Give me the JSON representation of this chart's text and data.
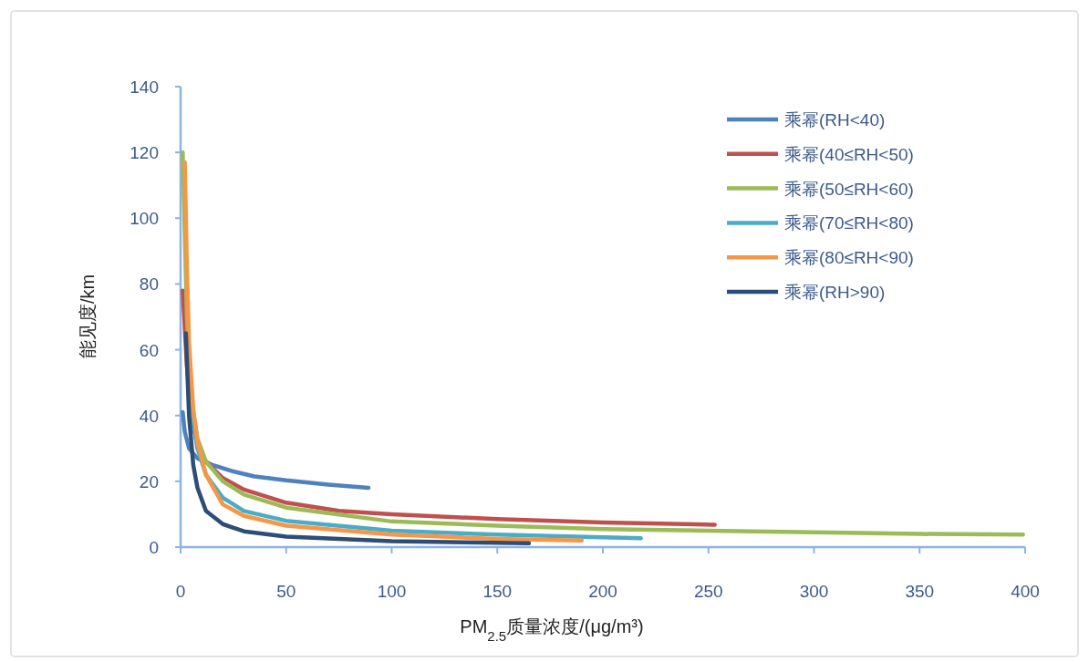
{
  "chart_data": {
    "type": "line",
    "xlabel": "PM$_{2.5}$质量浓度/(μg/m³)",
    "ylabel": "能见度/km",
    "xlim": [
      0,
      400
    ],
    "xticks": [
      0,
      50,
      100,
      150,
      200,
      250,
      300,
      350,
      400
    ],
    "ylim": [
      0,
      140
    ],
    "yticks": [
      0,
      20,
      40,
      60,
      80,
      100,
      120,
      140
    ],
    "grid": false,
    "legend": "top right",
    "marker": "none",
    "line_style": "solid",
    "series": [
      {
        "name": "乘幂(RH<40)",
        "color": "#4f81bd",
        "x": [
          1,
          2,
          4,
          8,
          15,
          25,
          35,
          50,
          70,
          89
        ],
        "values": [
          41,
          35,
          30,
          27,
          25,
          23,
          21.5,
          20.3,
          19,
          18
        ]
      },
      {
        "name": "乘幂(40≤RH<50)",
        "color": "#c0504d",
        "x": [
          1,
          3,
          5,
          8,
          12,
          20,
          30,
          50,
          75,
          100,
          150,
          200,
          253
        ],
        "values": [
          78,
          55,
          40,
          31,
          26,
          21,
          17.5,
          13.5,
          11,
          10,
          8.5,
          7.5,
          6.8
        ]
      },
      {
        "name": "乘幂(50≤RH<60)",
        "color": "#9bbb59",
        "x": [
          1,
          2,
          3,
          5,
          8,
          12,
          20,
          30,
          50,
          100,
          150,
          200,
          250,
          300,
          350,
          399
        ],
        "values": [
          120,
          95,
          70,
          45,
          33,
          26,
          20,
          16,
          12,
          7.8,
          6.5,
          5.5,
          5,
          4.5,
          4,
          3.8
        ]
      },
      {
        "name": "乘幂(70≤RH<80)",
        "color": "#4bacc6",
        "x": [
          5,
          8,
          12,
          20,
          30,
          50,
          100,
          150,
          200,
          218
        ],
        "values": [
          42,
          30,
          22,
          15,
          11,
          8,
          5,
          3.8,
          3,
          2.7
        ]
      },
      {
        "name": "乘幂(80≤RH<90)",
        "color": "#f79646",
        "x": [
          2,
          3,
          4,
          6,
          8,
          12,
          20,
          30,
          50,
          100,
          150,
          190
        ],
        "values": [
          117,
          85,
          62,
          42,
          32,
          22,
          13,
          9.5,
          6.5,
          3.8,
          2.5,
          2
        ]
      },
      {
        "name": "乘幂(RH>90)",
        "color": "#2c4d75",
        "x": [
          2.5,
          4,
          6,
          8,
          12,
          20,
          30,
          50,
          100,
          165
        ],
        "values": [
          65,
          40,
          25,
          18,
          11,
          7,
          4.8,
          3.2,
          1.8,
          1.2
        ]
      }
    ]
  }
}
